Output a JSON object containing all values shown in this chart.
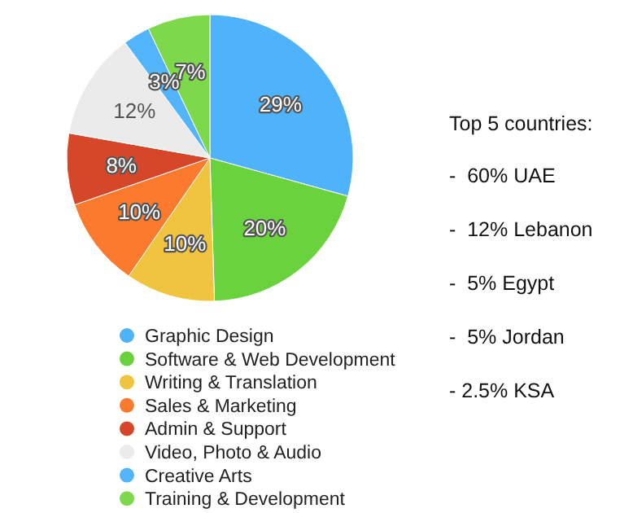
{
  "chart_data": [
    {
      "type": "pie",
      "categories": [
        "Graphic Design",
        "Software & Web Development",
        "Writing & Translation",
        "Sales & Marketing",
        "Admin & Support",
        "Video, Photo & Audio",
        "Creative Arts",
        "Training & Development"
      ],
      "values": [
        29,
        20,
        10,
        10,
        8,
        12,
        3,
        7
      ],
      "value_labels": [
        "29%",
        "20%",
        "10%",
        "10%",
        "8%",
        "12%",
        "3%",
        "7%"
      ],
      "colors": [
        "#4fb3fb",
        "#6ad23c",
        "#f0c43f",
        "#fb7a2e",
        "#d6472a",
        "#ebebeb",
        "#52b5fb",
        "#7dd84c"
      ],
      "legend": "bottom"
    },
    {
      "type": "other",
      "title": "Top 5 countries:",
      "annotations": [
        "-  60% UAE",
        "-  12% Lebanon",
        "-  5% Egypt",
        "-  5% Jordan",
        "- 2.5% KSA"
      ]
    }
  ]
}
